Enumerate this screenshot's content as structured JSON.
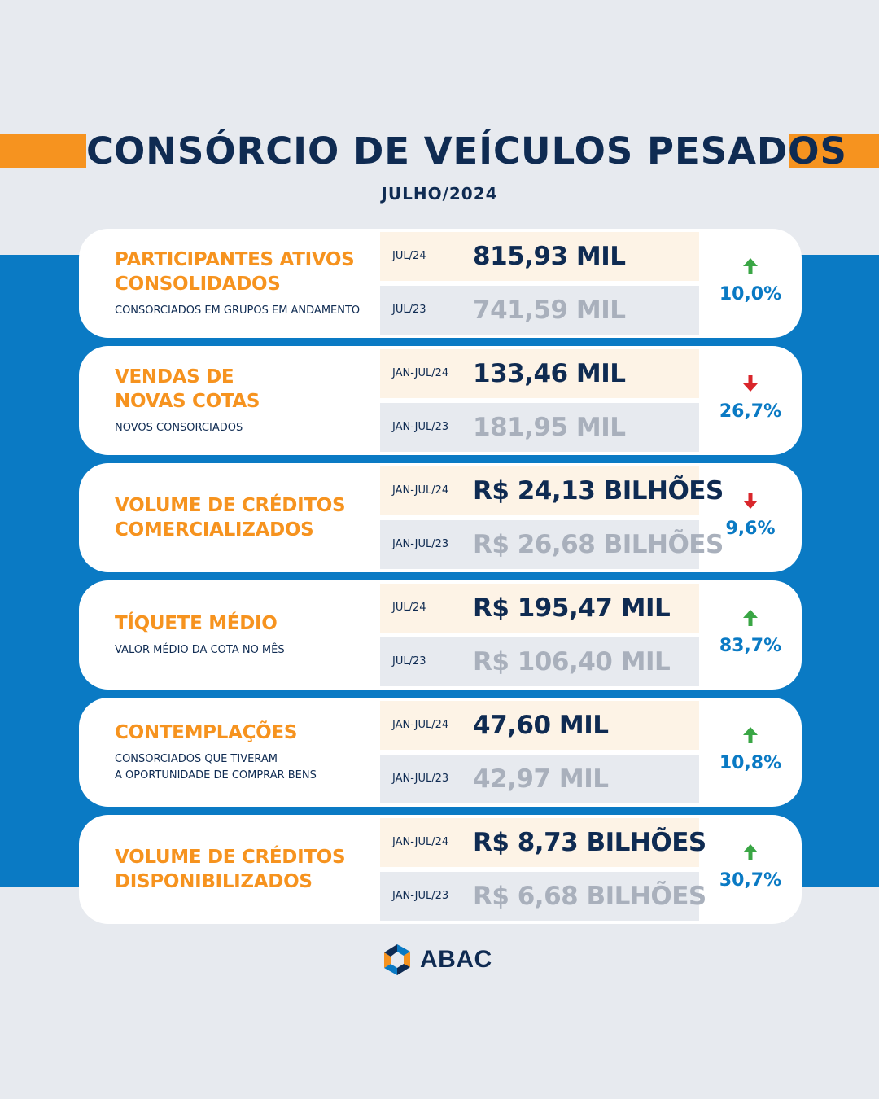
{
  "header": {
    "title": "CONSÓRCIO DE VEÍCULOS PESADOS",
    "subtitle": "JULHO/2024"
  },
  "colors": {
    "orange": "#f6931f",
    "navy": "#0f2b52",
    "blue": "#0a7ac4",
    "up": "#3aa645",
    "down": "#d9262b"
  },
  "cards": [
    {
      "label": "PARTICIPANTES ATIVOS\nCONSOLIDADOS",
      "description": "CONSORCIADOS EM GRUPOS EM ANDAMENTO",
      "current": {
        "period": "JUL/24",
        "value": "815,93 MIL"
      },
      "previous": {
        "period": "JUL/23",
        "value": "741,59 MIL"
      },
      "change": {
        "direction": "up",
        "icon": "arrow-up-icon",
        "percent": "10,0%"
      }
    },
    {
      "label": "VENDAS DE\nNOVAS COTAS",
      "description": "NOVOS CONSORCIADOS",
      "current": {
        "period": "JAN-JUL/24",
        "value": "133,46 MIL"
      },
      "previous": {
        "period": "JAN-JUL/23",
        "value": "181,95 MIL"
      },
      "change": {
        "direction": "down",
        "icon": "arrow-down-icon",
        "percent": "26,7%"
      }
    },
    {
      "label": "VOLUME DE CRÉDITOS\nCOMERCIALIZADOS",
      "description": "",
      "current": {
        "period": "JAN-JUL/24",
        "value": "R$ 24,13 BILHÕES"
      },
      "previous": {
        "period": "JAN-JUL/23",
        "value": "R$ 26,68 BILHÕES"
      },
      "change": {
        "direction": "down",
        "icon": "arrow-down-icon",
        "percent": "9,6%"
      }
    },
    {
      "label": "TÍQUETE MÉDIO",
      "description": "VALOR MÉDIO DA COTA NO MÊS",
      "current": {
        "period": "JUL/24",
        "value": "R$ 195,47 MIL"
      },
      "previous": {
        "period": "JUL/23",
        "value": "R$ 106,40 MIL"
      },
      "change": {
        "direction": "up",
        "icon": "arrow-up-icon",
        "percent": "83,7%"
      }
    },
    {
      "label": "CONTEMPLAÇÕES",
      "description": "CONSORCIADOS QUE TIVERAM\nA OPORTUNIDADE DE COMPRAR BENS",
      "current": {
        "period": "JAN-JUL/24",
        "value": "47,60 MIL"
      },
      "previous": {
        "period": "JAN-JUL/23",
        "value": "42,97 MIL"
      },
      "change": {
        "direction": "up",
        "icon": "arrow-up-icon",
        "percent": "10,8%"
      }
    },
    {
      "label": "VOLUME DE CRÉDITOS\nDISPONIBILIZADOS",
      "description": "",
      "current": {
        "period": "JAN-JUL/24",
        "value": "R$ 8,73 BILHÕES"
      },
      "previous": {
        "period": "JAN-JUL/23",
        "value": "R$ 6,68 BILHÕES"
      },
      "change": {
        "direction": "up",
        "icon": "arrow-up-icon",
        "percent": "30,7%"
      }
    }
  ],
  "footer": {
    "logo_text": "ABAC",
    "logo_icon": "abac-logo-icon"
  }
}
